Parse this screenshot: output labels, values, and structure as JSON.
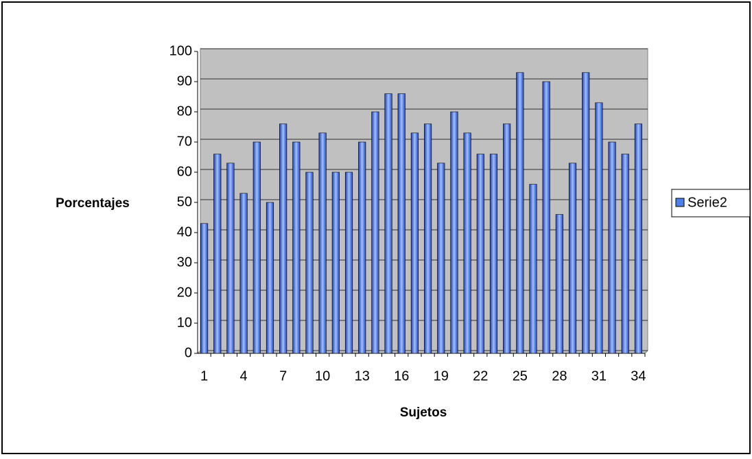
{
  "chart_data": {
    "type": "bar",
    "y_label": "Porcentajes",
    "x_label": "Sujetos",
    "categories": [
      "1",
      null,
      null,
      "4",
      null,
      null,
      "7",
      null,
      null,
      "10",
      null,
      null,
      "13",
      null,
      null,
      "16",
      null,
      null,
      "19",
      null,
      null,
      "22",
      null,
      null,
      "25",
      null,
      null,
      "28",
      null,
      null,
      "31",
      null,
      null,
      "34"
    ],
    "series": [
      {
        "name": "Serie2",
        "color": "#4f7fe8",
        "values": [
          43,
          66,
          63,
          53,
          70,
          50,
          76,
          70,
          60,
          73,
          60,
          60,
          70,
          80,
          86,
          86,
          73,
          76,
          63,
          80,
          73,
          66,
          66,
          76,
          93,
          56,
          90,
          46,
          63,
          93,
          83,
          70,
          66,
          76
        ]
      }
    ],
    "ylim": [
      0,
      100
    ],
    "yticks": [
      0,
      10,
      20,
      30,
      40,
      50,
      60,
      70,
      80,
      90,
      100
    ],
    "grid": true,
    "legend": "right"
  }
}
